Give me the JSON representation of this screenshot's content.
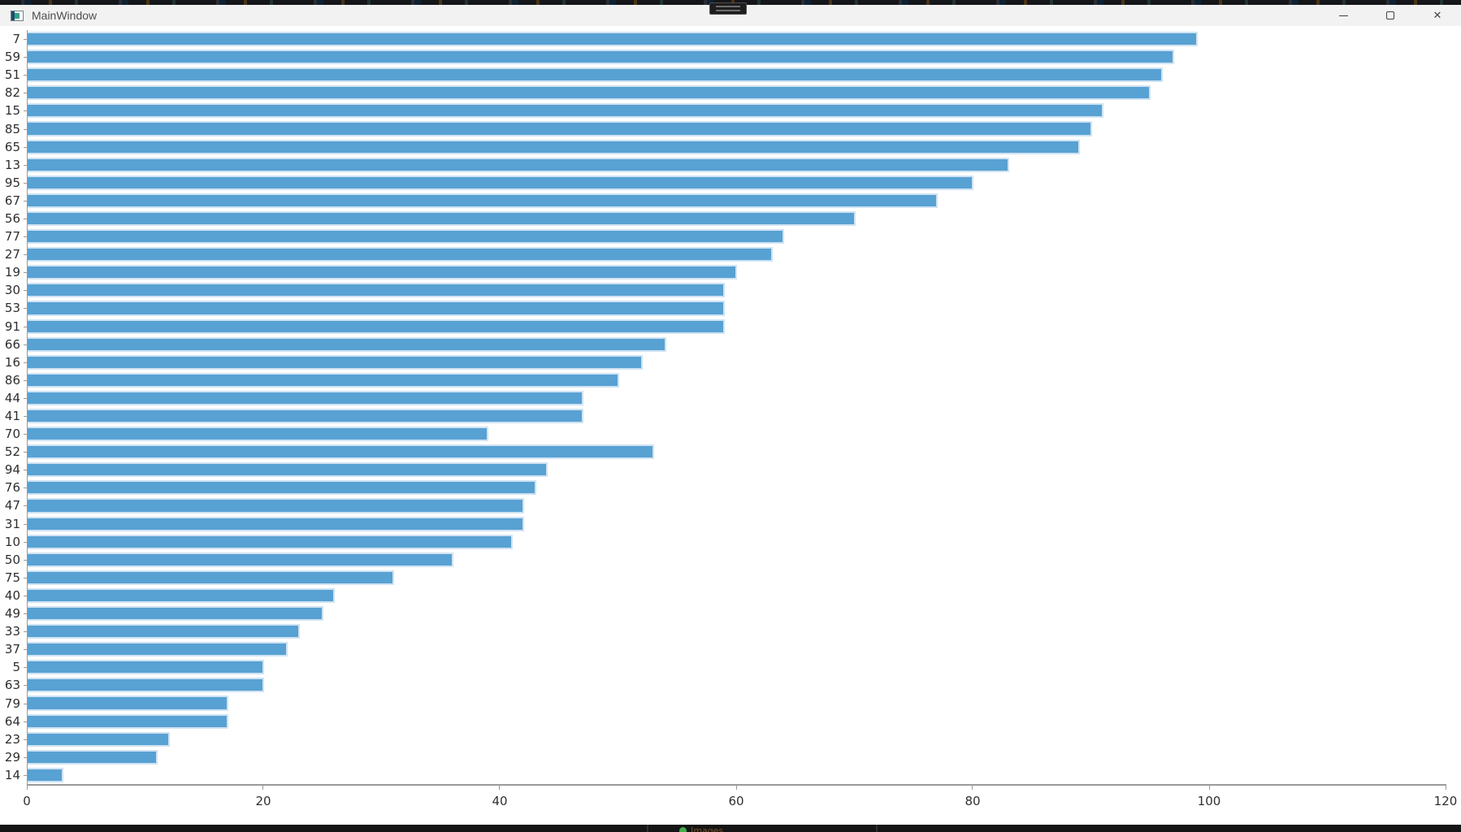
{
  "window": {
    "title": "MainWindow"
  },
  "icons": {
    "app": "app-window-icon",
    "minimize": "minimize-icon",
    "maximize": "maximize-icon",
    "close_glyph": "✕",
    "handle": "window-grab-handle"
  },
  "taskbar_behind": {
    "label": "Images"
  },
  "colors": {
    "bar_fill": "#58a1d3",
    "bar_edge": "#cfe3f2",
    "axis": "#9a9a9a",
    "titlebar_bg": "#f2f2f2",
    "title_text": "#4f4f4f"
  },
  "chart_data": {
    "type": "bar",
    "orientation": "horizontal",
    "title": "",
    "xlabel": "",
    "ylabel": "",
    "grid": false,
    "xlim": [
      0,
      120
    ],
    "xticks": [
      0,
      20,
      40,
      60,
      80,
      100,
      120
    ],
    "categories": [
      "7",
      "59",
      "51",
      "82",
      "15",
      "85",
      "65",
      "13",
      "95",
      "67",
      "56",
      "77",
      "27",
      "19",
      "30",
      "53",
      "91",
      "66",
      "16",
      "86",
      "44",
      "41",
      "70",
      "52",
      "94",
      "76",
      "47",
      "31",
      "10",
      "50",
      "75",
      "40",
      "49",
      "33",
      "37",
      "5",
      "63",
      "79",
      "64",
      "23",
      "29",
      "14"
    ],
    "values": [
      99,
      97,
      96,
      95,
      91,
      90,
      89,
      83,
      80,
      77,
      70,
      64,
      63,
      60,
      59,
      59,
      59,
      54,
      52,
      50,
      47,
      47,
      39,
      53,
      44,
      43,
      42,
      42,
      41,
      36,
      31,
      26,
      25,
      23,
      22,
      20,
      20,
      17,
      17,
      12,
      11,
      3
    ]
  }
}
